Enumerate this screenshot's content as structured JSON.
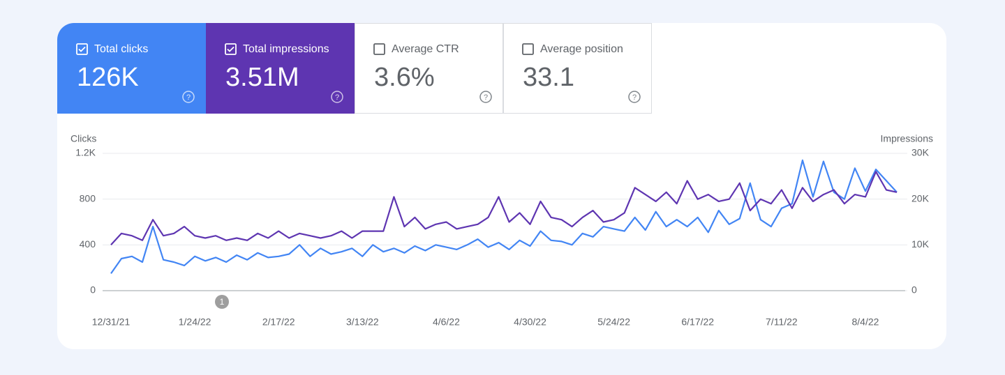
{
  "metrics": [
    {
      "label": "Total clicks",
      "value": "126K",
      "checked": true,
      "color": "#4285f4"
    },
    {
      "label": "Total impressions",
      "value": "3.51M",
      "checked": true,
      "color": "#5e35b1"
    },
    {
      "label": "Average CTR",
      "value": "3.6%",
      "checked": false
    },
    {
      "label": "Average position",
      "value": "33.1",
      "checked": false
    }
  ],
  "chart_data": {
    "type": "line",
    "y_label": "Clicks",
    "y2_label": "Impressions",
    "annotation": "1",
    "x": [
      "12/31/21",
      "1/3/22",
      "1/6/22",
      "1/9/22",
      "1/12/22",
      "1/15/22",
      "1/18/22",
      "1/21/22",
      "1/24/22",
      "1/27/22",
      "1/30/22",
      "2/2/22",
      "2/5/22",
      "2/8/22",
      "2/11/22",
      "2/14/22",
      "2/17/22",
      "2/20/22",
      "2/23/22",
      "2/26/22",
      "3/1/22",
      "3/4/22",
      "3/7/22",
      "3/10/22",
      "3/13/22",
      "3/16/22",
      "3/19/22",
      "3/22/22",
      "3/25/22",
      "3/28/22",
      "3/31/22",
      "4/3/22",
      "4/6/22",
      "4/9/22",
      "4/12/22",
      "4/15/22",
      "4/18/22",
      "4/21/22",
      "4/24/22",
      "4/27/22",
      "4/30/22",
      "5/3/22",
      "5/6/22",
      "5/9/22",
      "5/12/22",
      "5/15/22",
      "5/18/22",
      "5/21/22",
      "5/24/22",
      "5/27/22",
      "5/30/22",
      "6/2/22",
      "6/5/22",
      "6/8/22",
      "6/11/22",
      "6/14/22",
      "6/17/22",
      "6/20/22",
      "6/23/22",
      "6/26/22",
      "6/29/22",
      "7/2/22",
      "7/5/22",
      "7/8/22",
      "7/11/22",
      "7/14/22",
      "7/17/22",
      "7/20/22",
      "7/23/22",
      "7/26/22",
      "7/29/22",
      "8/1/22",
      "8/4/22",
      "8/7/22",
      "8/10/22",
      "8/13/22"
    ],
    "xticks": [
      "12/31/21",
      "1/24/22",
      "2/17/22",
      "3/13/22",
      "4/6/22",
      "4/30/22",
      "5/24/22",
      "6/17/22",
      "7/11/22",
      "8/4/22"
    ],
    "ylim": [
      0,
      1200
    ],
    "yticks": [
      0,
      400,
      800,
      {
        "value": 1200,
        "label": "1.2K"
      }
    ],
    "y2lim": [
      0,
      30000
    ],
    "y2ticks": [
      0,
      {
        "value": 10000,
        "label": "10K"
      },
      {
        "value": 20000,
        "label": "20K"
      },
      {
        "value": 30000,
        "label": "30K"
      }
    ],
    "grid": true,
    "series": [
      {
        "name": "Clicks",
        "color": "#4285f4",
        "values": [
          150,
          280,
          300,
          250,
          560,
          270,
          250,
          220,
          300,
          260,
          290,
          250,
          310,
          270,
          330,
          290,
          300,
          320,
          400,
          300,
          370,
          320,
          340,
          370,
          300,
          400,
          340,
          370,
          330,
          390,
          350,
          400,
          380,
          360,
          400,
          450,
          380,
          420,
          360,
          440,
          390,
          520,
          440,
          430,
          400,
          500,
          470,
          560,
          540,
          520,
          640,
          530,
          690,
          560,
          620,
          560,
          640,
          510,
          700,
          580,
          630,
          940,
          620,
          560,
          720,
          760,
          1140,
          820,
          1130,
          860,
          800,
          1070,
          870,
          1060,
          960,
          860
        ]
      },
      {
        "name": "Impressions",
        "color": "#5e35b1",
        "axis": "y2",
        "values": [
          10000,
          12500,
          12000,
          11000,
          15500,
          12000,
          12500,
          14000,
          12000,
          11500,
          12000,
          11000,
          11500,
          11000,
          12500,
          11500,
          13000,
          11500,
          12500,
          12000,
          11500,
          12000,
          13000,
          11500,
          13000,
          13000,
          13000,
          20500,
          14000,
          16000,
          13500,
          14500,
          15000,
          13500,
          14000,
          14500,
          16000,
          20500,
          15000,
          17000,
          14500,
          19500,
          16000,
          15500,
          14000,
          16000,
          17500,
          15000,
          15500,
          17000,
          22500,
          21000,
          19500,
          21500,
          19000,
          24000,
          20000,
          21000,
          19500,
          20000,
          23500,
          17500,
          20000,
          19000,
          22000,
          18000,
          22500,
          19500,
          21000,
          22000,
          19000,
          21000,
          20500,
          26000,
          22000,
          21500
        ]
      }
    ]
  }
}
